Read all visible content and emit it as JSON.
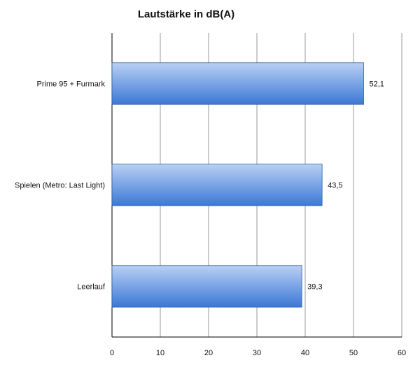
{
  "chart_data": {
    "type": "bar",
    "orientation": "horizontal",
    "title": "Lautstärke in dB(A)",
    "xlabel": "",
    "ylabel": "",
    "categories": [
      "Prime 95 + Furmark",
      "Spielen (Metro: Last Light)",
      "Leerlauf"
    ],
    "values": [
      52.1,
      43.5,
      39.3
    ],
    "value_labels": [
      "52,1",
      "43,5",
      "39,3"
    ],
    "xlim": [
      0,
      60
    ],
    "ticks": [
      0,
      10,
      20,
      30,
      40,
      50,
      60
    ],
    "grid": true,
    "legend": "none",
    "colors": {
      "bar_top": "#b9d0f3",
      "bar_bottom": "#3b78d6",
      "bar_border": "#2f5f9e",
      "grid": "#9a9a9a",
      "axis": "#000000"
    }
  }
}
